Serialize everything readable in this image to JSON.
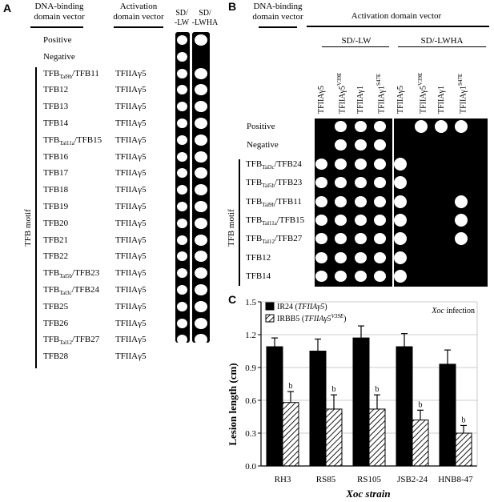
{
  "panel_a": {
    "letter": "A",
    "col1_header": [
      "DNA-binding",
      "domain vector"
    ],
    "col2_header": [
      "Activation",
      "domain vector"
    ],
    "col3_header": [
      "SD/",
      "-LW"
    ],
    "col4_header": [
      "SD/",
      "-LWHA"
    ],
    "group_label": "TFB motif",
    "rows": [
      {
        "dbd": "Positive",
        "ad": "",
        "lw": true,
        "lwha": true
      },
      {
        "dbd": "Negative",
        "ad": "",
        "lw": true,
        "lwha": false
      },
      {
        "dbd": "TFB",
        "dbd_sub": "Tal9b",
        "dbd_suffix": "/TFB11",
        "ad": "TFIIAγ5",
        "lw": true,
        "lwha": true
      },
      {
        "dbd": "TFB12",
        "ad": "TFIIAγ5",
        "lw": true,
        "lwha": true
      },
      {
        "dbd": "TFB13",
        "ad": "TFIIAγ5",
        "lw": true,
        "lwha": true
      },
      {
        "dbd": "TFB14",
        "ad": "TFIIAγ5",
        "lw": true,
        "lwha": true
      },
      {
        "dbd": "TFB",
        "dbd_sub": "Tal11a",
        "dbd_suffix": "/TFB15",
        "ad": "TFIIAγ5",
        "lw": true,
        "lwha": true
      },
      {
        "dbd": "TFB16",
        "ad": "TFIIAγ5",
        "lw": true,
        "lwha": true
      },
      {
        "dbd": "TFB17",
        "ad": "TFIIAγ5",
        "lw": true,
        "lwha": true
      },
      {
        "dbd": "TFB18",
        "ad": "TFIIAγ5",
        "lw": true,
        "lwha": true
      },
      {
        "dbd": "TFB19",
        "ad": "TFIIAγ5",
        "lw": true,
        "lwha": true
      },
      {
        "dbd": "TFB20",
        "ad": "TFIIAγ5",
        "lw": true,
        "lwha": true
      },
      {
        "dbd": "TFB21",
        "ad": "TFIIAγ5",
        "lw": true,
        "lwha": true
      },
      {
        "dbd": "TFB22",
        "ad": "TFIIAγ5",
        "lw": true,
        "lwha": true
      },
      {
        "dbd": "TFB",
        "dbd_sub": "Tal5b",
        "dbd_suffix": "/TFB23",
        "ad": "TFIIAγ5",
        "lw": true,
        "lwha": true
      },
      {
        "dbd": "TFB",
        "dbd_sub": "Tal3c",
        "dbd_suffix": "/TFB24",
        "ad": "TFIIAγ5",
        "lw": true,
        "lwha": true
      },
      {
        "dbd": "TFB25",
        "ad": "TFIIAγ5",
        "lw": true,
        "lwha": true
      },
      {
        "dbd": "TFB26",
        "ad": "TFIIAγ5",
        "lw": true,
        "lwha": true
      },
      {
        "dbd": "TFB",
        "dbd_sub": "Tal12",
        "dbd_suffix": "/TFB27",
        "ad": "TFIIAγ5",
        "lw": true,
        "lwha": true
      },
      {
        "dbd": "TFB28",
        "ad": "TFIIAγ5",
        "lw": true,
        "lwha": true
      }
    ]
  },
  "panel_b": {
    "letter": "B",
    "dbd_header": [
      "DNA-binding",
      "domain vector"
    ],
    "ad_header": "Activation domain vector",
    "lw_label": "SD/-LW",
    "lwha_label": "SD/-LWHA",
    "group_label": "TFB motif",
    "columns": [
      {
        "base": "TFIIAγ5",
        "sup": ""
      },
      {
        "base": "TFIIAγ5",
        "sup": "V39E"
      },
      {
        "base": "TFIIAγ1",
        "sup": ""
      },
      {
        "base": "TFIIAγ1",
        "sup": "S47E"
      }
    ],
    "rows": [
      {
        "label": "Positive",
        "lw": [
          false,
          true,
          true,
          true
        ],
        "lwha": [
          false,
          true,
          true,
          true
        ]
      },
      {
        "label": "Negative",
        "lw": [
          false,
          true,
          true,
          true
        ],
        "lwha": [
          false,
          false,
          false,
          false
        ]
      },
      {
        "label": "TFB",
        "sub": "Tal3c",
        "suffix": "/TFB24",
        "lw": [
          true,
          true,
          true,
          true
        ],
        "lwha": [
          true,
          false,
          false,
          false
        ]
      },
      {
        "label": "TFB",
        "sub": "Tal5b",
        "suffix": "/TFB23",
        "lw": [
          true,
          true,
          true,
          true
        ],
        "lwha": [
          true,
          false,
          false,
          false
        ]
      },
      {
        "label": "TFB",
        "sub": "Tal9b",
        "suffix": "/TFB11",
        "lw": [
          true,
          true,
          true,
          true
        ],
        "lwha": [
          true,
          false,
          false,
          true
        ]
      },
      {
        "label": "TFB",
        "sub": "Tal11a",
        "suffix": "/TFB15",
        "lw": [
          true,
          true,
          true,
          true
        ],
        "lwha": [
          true,
          false,
          false,
          true
        ]
      },
      {
        "label": "TFB",
        "sub": "Tal12",
        "suffix": "/TFB27",
        "lw": [
          true,
          true,
          true,
          true
        ],
        "lwha": [
          true,
          false,
          false,
          true
        ]
      },
      {
        "label": "TFB12",
        "lw": [
          true,
          true,
          true,
          true
        ],
        "lwha": [
          true,
          false,
          false,
          false
        ]
      },
      {
        "label": "TFB14",
        "lw": [
          true,
          true,
          true,
          true
        ],
        "lwha": [
          true,
          false,
          false,
          false
        ]
      }
    ]
  },
  "panel_c": {
    "letter": "C",
    "annotation_prefix": "Xoc",
    "annotation_suffix": " infection",
    "significance_label": "b"
  },
  "chart_data": {
    "type": "bar",
    "categories": [
      "RH3",
      "RS85",
      "RS105",
      "JSB2-24",
      "HNB8-47"
    ],
    "series": [
      {
        "name": "IR24 (TFIIAγ5)",
        "name_prefix": "IR24 (",
        "name_italic": "TFIIAγ5",
        "name_sup": "",
        "name_suffix": ")",
        "color": "#000000",
        "values": [
          1.09,
          1.05,
          1.17,
          1.09,
          0.93
        ],
        "errors": [
          0.08,
          0.11,
          0.11,
          0.12,
          0.13
        ]
      },
      {
        "name": "IRBB5 (TFIIAγ5V39E)",
        "name_prefix": "IRBB5 (",
        "name_italic": "TFIIAγ5",
        "name_sup": "V39E",
        "name_suffix": ")",
        "color": "#ffffff",
        "pattern": "hatch",
        "values": [
          0.58,
          0.52,
          0.52,
          0.42,
          0.3
        ],
        "errors": [
          0.1,
          0.13,
          0.13,
          0.09,
          0.07
        ]
      }
    ],
    "significance": [
      false,
      false,
      false,
      false,
      false,
      true,
      true,
      true,
      true,
      true
    ],
    "ylabel": "Lesion length (cm)",
    "xlabel": "Xoc strain",
    "ylim": [
      0,
      1.5
    ],
    "yticks": [
      "0.0",
      "0.3",
      "0.6",
      "0.9",
      "1.2",
      "1.5"
    ],
    "grid": true,
    "legend": "top-left"
  }
}
